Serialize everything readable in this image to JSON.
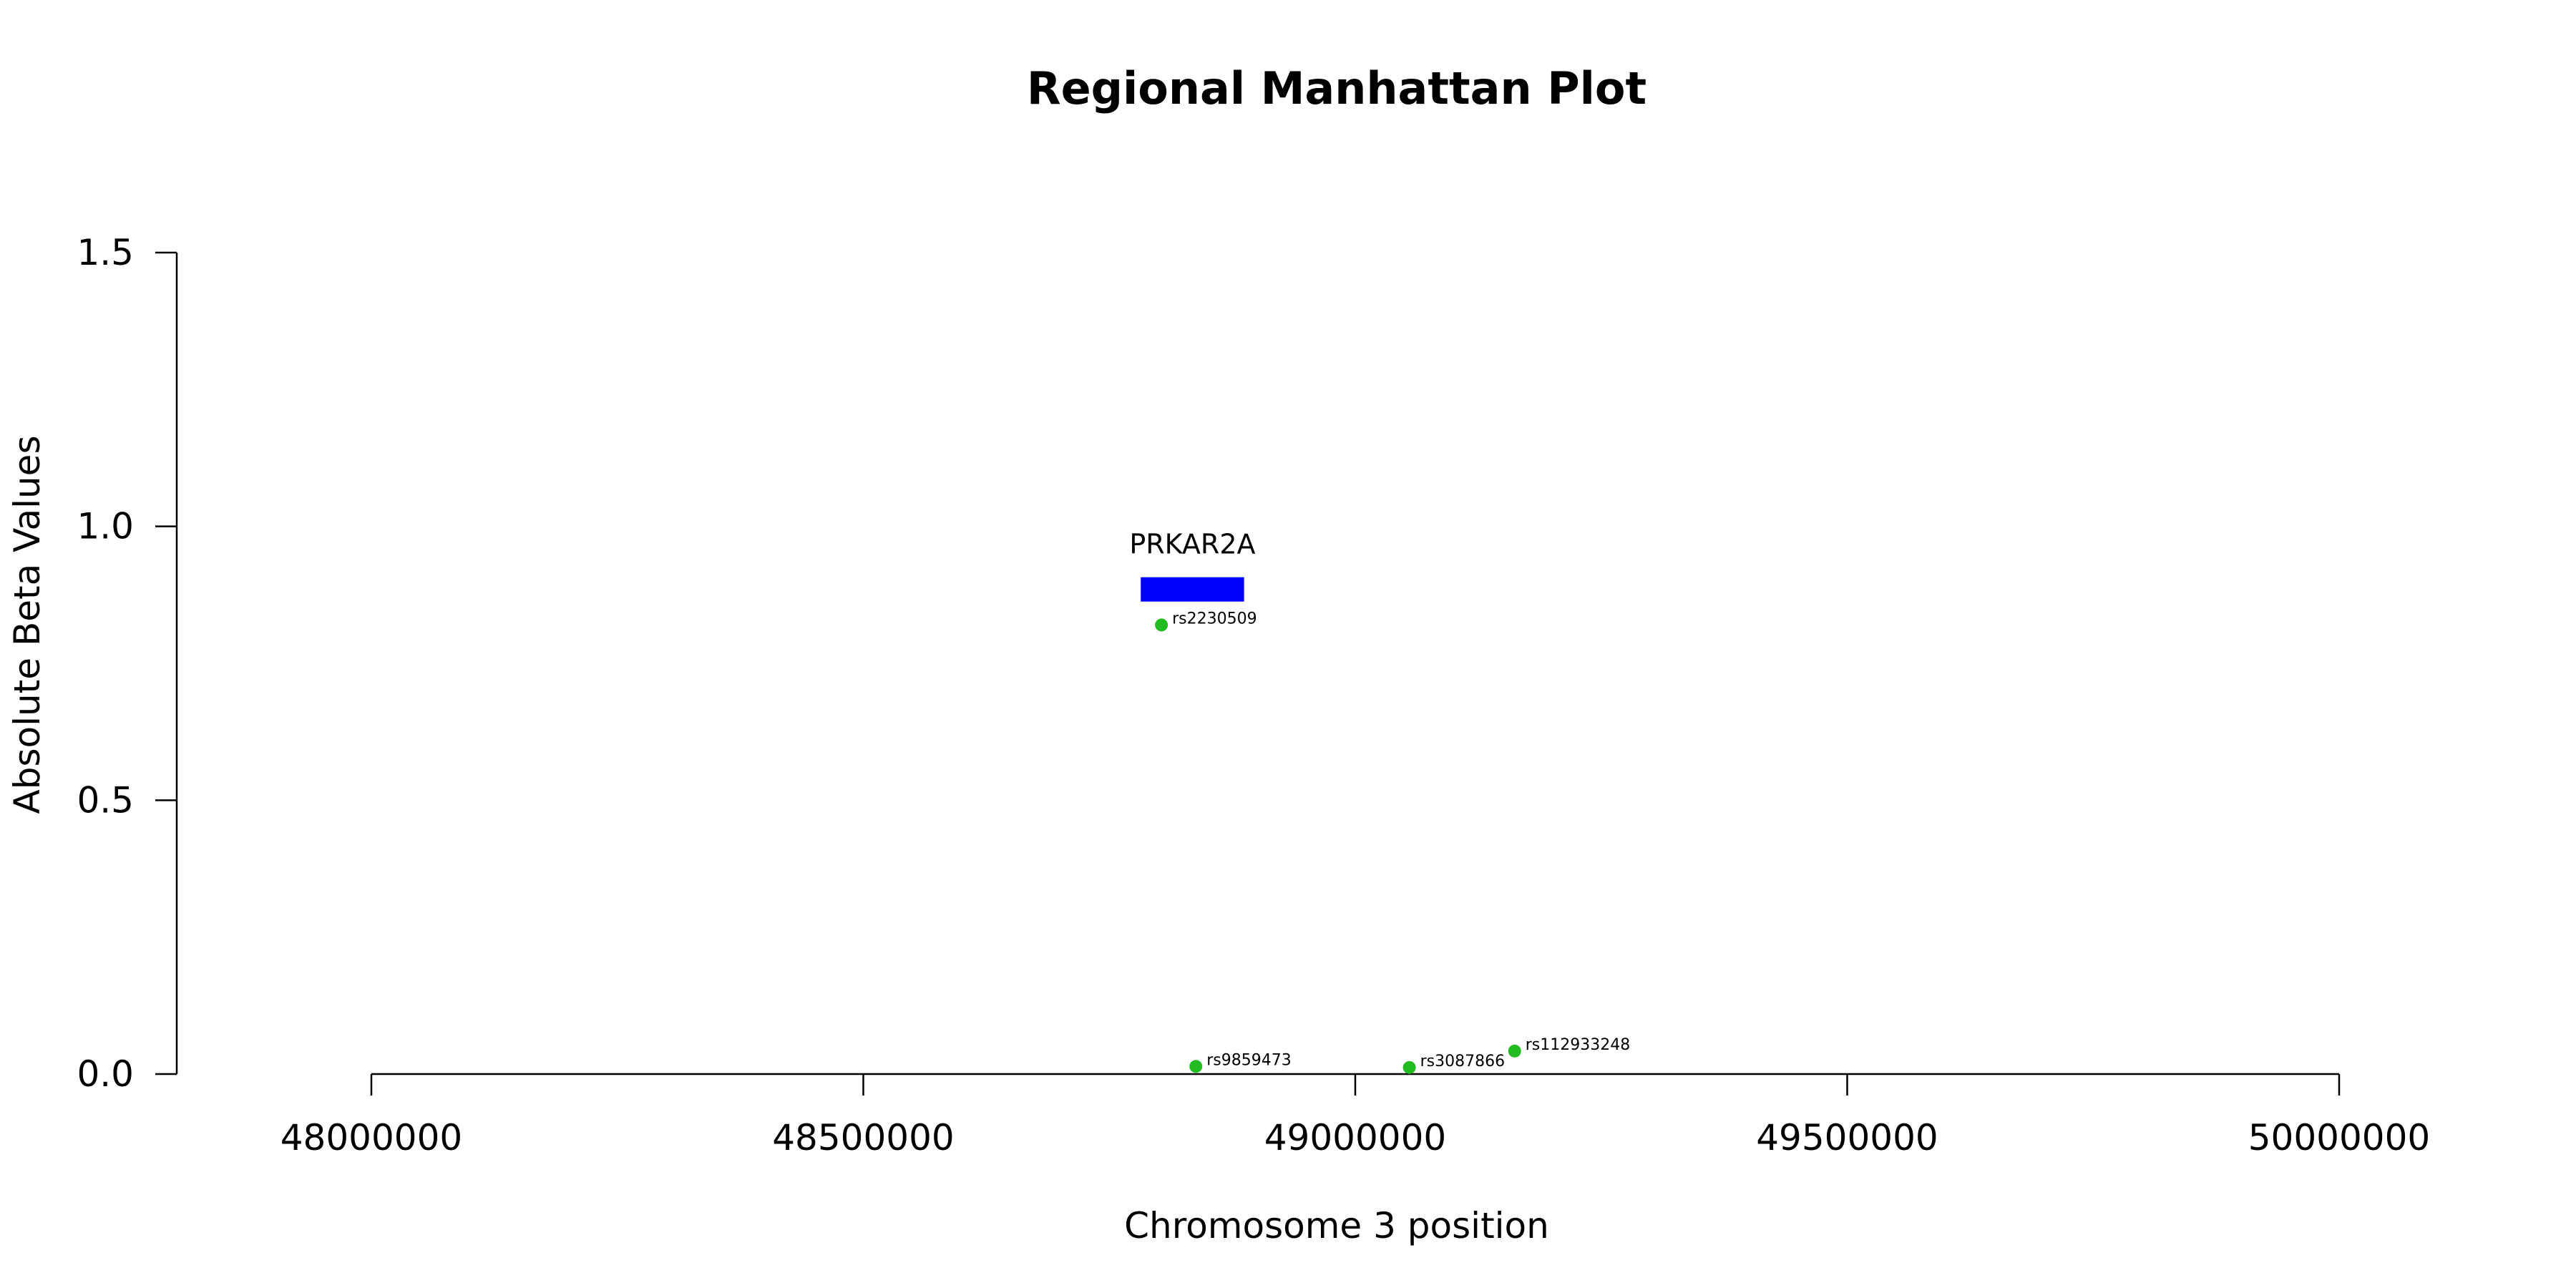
{
  "chart_data": {
    "type": "scatter",
    "title": "Regional Manhattan Plot",
    "xlabel": "Chromosome 3 position",
    "ylabel": "Absolute Beta Values",
    "xlim": [
      48000000,
      50000000
    ],
    "ylim": [
      0,
      1.5
    ],
    "x_ticks": [
      48000000,
      48500000,
      49000000,
      49500000,
      50000000
    ],
    "x_tick_labels": [
      "48000000",
      "48500000",
      "49000000",
      "49500000",
      "50000000"
    ],
    "y_ticks": [
      0,
      0.5,
      1.0,
      1.5
    ],
    "y_tick_labels": [
      "0.0",
      "0.5",
      "1.0",
      "1.5"
    ],
    "grid": false,
    "point_color": "#22bb22",
    "points": [
      {
        "label": "rs2230509",
        "x": 48803000,
        "y": 0.82
      },
      {
        "label": "rs9859473",
        "x": 48838000,
        "y": 0.014
      },
      {
        "label": "rs3087866",
        "x": 49055000,
        "y": 0.012
      },
      {
        "label": "rs112933248",
        "x": 49162000,
        "y": 0.042
      }
    ],
    "genes": [
      {
        "name": "PRKAR2A",
        "start": 48782000,
        "end": 48887000,
        "y": 0.885,
        "color": "#0000ff"
      }
    ]
  }
}
